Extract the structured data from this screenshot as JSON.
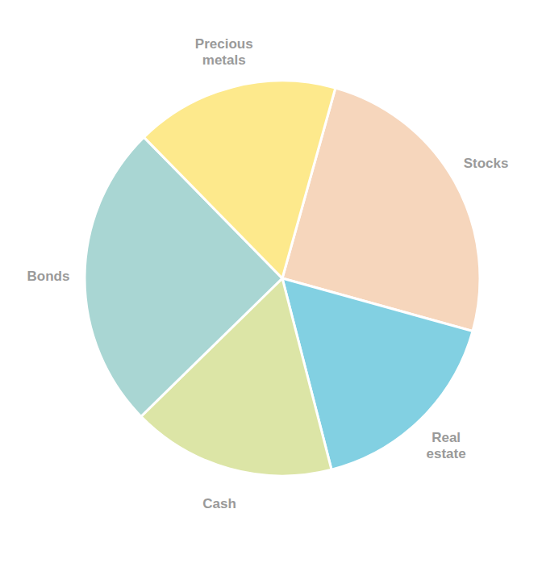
{
  "chart_data": {
    "type": "pie",
    "categories": [
      "Stocks",
      "Real estate",
      "Cash",
      "Bonds",
      "Precious metals"
    ],
    "values": [
      25,
      16.7,
      16.7,
      25,
      16.7
    ],
    "colors": [
      "#f6d6bc",
      "#82d0e2",
      "#dce5a6",
      "#a9d6d3",
      "#fde98c"
    ]
  }
}
